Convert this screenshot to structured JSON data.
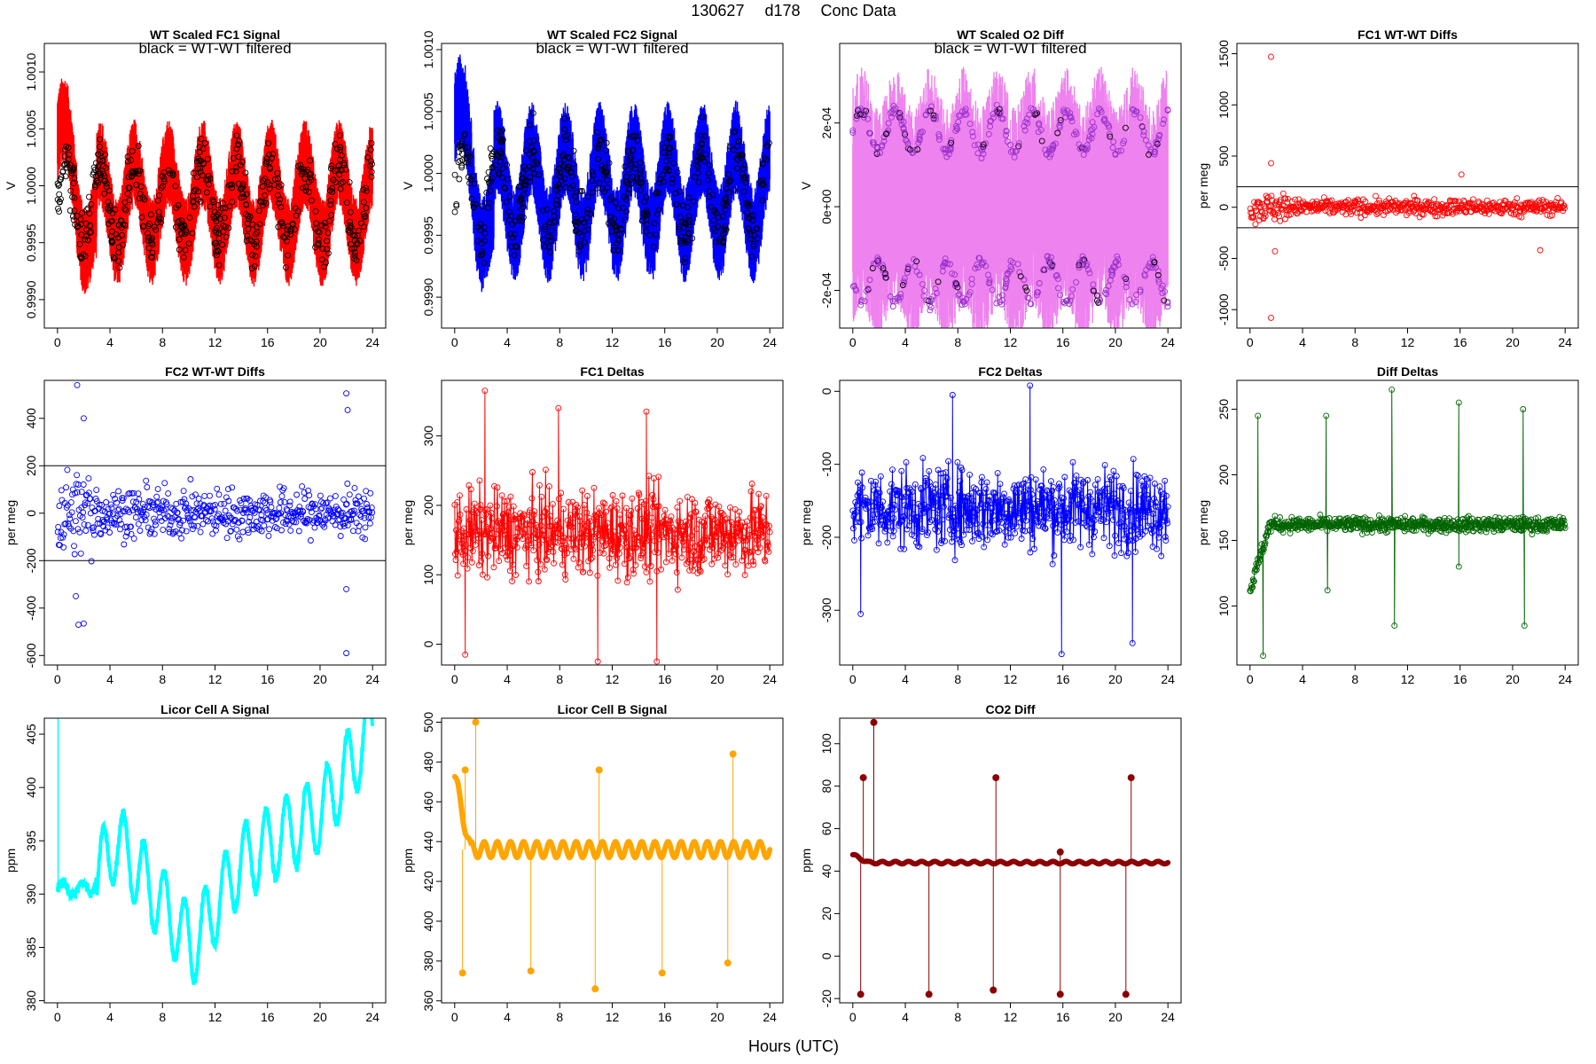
{
  "figure": {
    "title_parts": [
      "130627",
      "d178",
      "Conc Data"
    ],
    "xlabel": "Hours (UTC)"
  },
  "chart_data": [
    {
      "id": "fc1_signal",
      "type": "line",
      "title": "WT Scaled FC1 Signal",
      "annotation": "black = WT-WT filtered",
      "ylabel": "V",
      "color": "#ff0000",
      "overlay_color": "#000000",
      "xlim": [
        -1,
        25
      ],
      "ylim": [
        0.99875,
        1.00125
      ],
      "xticks": [
        0,
        4,
        8,
        12,
        16,
        20,
        24
      ],
      "yticks": [
        0.999,
        0.9995,
        1.0,
        1.0005,
        1.001
      ],
      "ytick_labels": [
        "0.9990",
        "0.9995",
        "1.0000",
        "1.0005",
        "1.0010"
      ],
      "shape": "diurnal",
      "x_range": [
        0,
        24
      ],
      "center": 0.99985,
      "band": 0.0003,
      "amplitude": 0.00035,
      "period_h": 2.6,
      "markers": "black-circles"
    },
    {
      "id": "fc2_signal",
      "type": "line",
      "title": "WT Scaled FC2 Signal",
      "annotation": "black = WT-WT filtered",
      "ylabel": "V",
      "color": "#0000ff",
      "overlay_color": "#000000",
      "xlim": [
        -1,
        25
      ],
      "ylim": [
        0.99875,
        1.00105
      ],
      "xticks": [
        0,
        4,
        8,
        12,
        16,
        20,
        24
      ],
      "yticks": [
        0.999,
        0.9995,
        1.0,
        1.0005,
        1.001
      ],
      "ytick_labels": [
        "0.9990",
        "0.9995",
        "1.0000",
        "1.0005",
        "1.0010"
      ],
      "shape": "diurnal",
      "x_range": [
        0,
        24
      ],
      "center": 0.99985,
      "band": 0.0003,
      "amplitude": 0.00035,
      "period_h": 2.6,
      "markers": "black-circles"
    },
    {
      "id": "o2_diff",
      "type": "line",
      "title": "WT Scaled O2 Diff",
      "annotation": "black = WT-WT filtered",
      "ylabel": "V",
      "color": "#ee82ee",
      "overlay_color": "#9932cc",
      "xlim": [
        -1,
        25
      ],
      "ylim": [
        -0.00029,
        0.00039
      ],
      "xticks": [
        0,
        4,
        8,
        12,
        16,
        20,
        24
      ],
      "yticks": [
        -0.0002,
        0.0,
        0.0002
      ],
      "ytick_labels": [
        "-2e-04",
        "0e+00",
        "2e-04"
      ],
      "shape": "o2band",
      "x_range": [
        0,
        24
      ],
      "center": 0.0,
      "band": 0.00022,
      "amplitude": 5e-05,
      "period_h": 2.6,
      "markers": "purple-circles"
    },
    {
      "id": "fc1_wtwt",
      "type": "scatter",
      "title": "FC1 WT-WT Diffs",
      "ylabel": "per meg",
      "color": "#ff0000",
      "xlim": [
        -1,
        25
      ],
      "ylim": [
        -1180,
        1600
      ],
      "xticks": [
        0,
        4,
        8,
        12,
        16,
        20,
        24
      ],
      "yticks": [
        -1000,
        -500,
        0,
        500,
        1000,
        1500
      ],
      "ytick_labels": [
        "-1000",
        "-500",
        "0",
        "500",
        "1000",
        "1500"
      ],
      "hlines": [
        200,
        -200
      ],
      "shape": "scatter",
      "x_range": [
        0,
        24
      ],
      "center": 0,
      "band": 70,
      "outliers": [
        [
          1.6,
          1470
        ],
        [
          1.6,
          -1080
        ],
        [
          1.6,
          430
        ],
        [
          22.1,
          -420
        ],
        [
          16.1,
          320
        ],
        [
          1.9,
          -430
        ]
      ]
    },
    {
      "id": "fc2_wtwt",
      "type": "scatter",
      "title": "FC2 WT-WT Diffs",
      "ylabel": "per meg",
      "color": "#0000ff",
      "xlim": [
        -1,
        25
      ],
      "ylim": [
        -640,
        560
      ],
      "xticks": [
        0,
        4,
        8,
        12,
        16,
        20,
        24
      ],
      "yticks": [
        -600,
        -400,
        -200,
        0,
        200,
        400
      ],
      "ytick_labels": [
        "-600",
        "-400",
        "-200",
        "0",
        "200",
        "400"
      ],
      "hlines": [
        200,
        -200
      ],
      "shape": "scatter",
      "x_range": [
        0,
        24
      ],
      "center": 0,
      "band": 90,
      "outliers": [
        [
          1.5,
          540
        ],
        [
          22.0,
          505
        ],
        [
          2.0,
          400
        ],
        [
          22.1,
          435
        ],
        [
          1.6,
          -470
        ],
        [
          2.0,
          -465
        ],
        [
          22.0,
          -590
        ],
        [
          22.0,
          -320
        ],
        [
          1.4,
          -350
        ]
      ]
    },
    {
      "id": "fc1_deltas",
      "type": "line",
      "title": "FC1 Deltas",
      "ylabel": "per meg",
      "color": "#ff0000",
      "xlim": [
        -1,
        25
      ],
      "ylim": [
        -30,
        380
      ],
      "xticks": [
        0,
        4,
        8,
        12,
        16,
        20,
        24
      ],
      "yticks": [
        0,
        100,
        200,
        300
      ],
      "ytick_labels": [
        "0",
        "100",
        "200",
        "300"
      ],
      "shape": "noisy",
      "x_range": [
        0,
        24
      ],
      "center": 160,
      "band": 55,
      "outliers": [
        [
          0.8,
          -15
        ],
        [
          2.3,
          365
        ],
        [
          10.9,
          -25
        ],
        [
          15.4,
          -25
        ],
        [
          14.6,
          335
        ],
        [
          7.9,
          340
        ]
      ]
    },
    {
      "id": "fc2_deltas",
      "type": "line",
      "title": "FC2 Deltas",
      "ylabel": "per meg",
      "color": "#0000ff",
      "xlim": [
        -1,
        25
      ],
      "ylim": [
        -375,
        15
      ],
      "xticks": [
        0,
        4,
        8,
        12,
        16,
        20,
        24
      ],
      "yticks": [
        -300,
        -200,
        -100,
        0
      ],
      "ytick_labels": [
        "-300",
        "-200",
        "-100",
        "0"
      ],
      "shape": "noisy",
      "x_range": [
        0,
        24
      ],
      "center": -160,
      "band": 50,
      "outliers": [
        [
          15.9,
          -360
        ],
        [
          13.5,
          8
        ],
        [
          7.6,
          -5
        ],
        [
          0.6,
          -305
        ],
        [
          21.3,
          -345
        ]
      ]
    },
    {
      "id": "diff_deltas",
      "type": "line",
      "title": "Diff Deltas",
      "ylabel": "per meg",
      "color": "#006400",
      "xlim": [
        -1,
        25
      ],
      "ylim": [
        55,
        272
      ],
      "xticks": [
        0,
        4,
        8,
        12,
        16,
        20,
        24
      ],
      "yticks": [
        100,
        150,
        200,
        250
      ],
      "ytick_labels": [
        "100",
        "150",
        "200",
        "250"
      ],
      "shape": "spiky",
      "x_range": [
        0,
        24
      ],
      "center": 162,
      "band": 4,
      "spikes_up": [
        [
          0.6,
          245
        ],
        [
          5.8,
          245
        ],
        [
          10.8,
          265
        ],
        [
          15.9,
          255
        ],
        [
          20.8,
          250
        ]
      ],
      "spikes_down": [
        [
          1.0,
          62
        ],
        [
          5.9,
          112
        ],
        [
          11.0,
          85
        ],
        [
          15.9,
          130
        ],
        [
          20.9,
          85
        ]
      ]
    },
    {
      "id": "licor_a",
      "type": "line",
      "title": "Licor Cell A Signal",
      "ylabel": "ppm",
      "color": "#00ffff",
      "xlim": [
        -1,
        25
      ],
      "ylim": [
        379.8,
        406.5
      ],
      "xticks": [
        0,
        4,
        8,
        12,
        16,
        20,
        24
      ],
      "yticks": [
        380,
        385,
        390,
        395,
        400,
        405
      ],
      "ytick_labels": [
        "380",
        "385",
        "390",
        "395",
        "400",
        "405"
      ],
      "shape": "licorA",
      "x_range": [
        0,
        24
      ],
      "trend": [
        [
          0,
          390.5
        ],
        [
          2.5,
          390.5
        ],
        [
          4.5,
          395
        ],
        [
          10.3,
          385
        ],
        [
          14,
          393
        ],
        [
          20,
          397.5
        ],
        [
          24,
          405.5
        ]
      ],
      "amplitude": 3.5,
      "period_h": 1.55,
      "outliers": [
        [
          0.05,
          406.5
        ]
      ]
    },
    {
      "id": "licor_b",
      "type": "line",
      "title": "Licor Cell B Signal",
      "ylabel": "ppm",
      "color": "#ffa500",
      "xlim": [
        -1,
        25
      ],
      "ylim": [
        359,
        502
      ],
      "xticks": [
        0,
        4,
        8,
        12,
        16,
        20,
        24
      ],
      "yticks": [
        360,
        380,
        400,
        420,
        440,
        460,
        480,
        500
      ],
      "ytick_labels": [
        "360",
        "380",
        "400",
        "420",
        "440",
        "460",
        "480",
        "500"
      ],
      "shape": "spikyline",
      "x_range": [
        0,
        24
      ],
      "center": 436,
      "amplitude": 4,
      "period_h": 1.0,
      "spikes_up": [
        [
          0.8,
          476
        ],
        [
          1.6,
          500
        ],
        [
          11.0,
          476
        ],
        [
          21.2,
          484
        ]
      ],
      "spikes_down": [
        [
          0.6,
          374
        ],
        [
          5.8,
          375
        ],
        [
          10.7,
          366
        ],
        [
          15.8,
          374
        ],
        [
          20.8,
          379
        ]
      ]
    },
    {
      "id": "co2_diff",
      "type": "line",
      "title": "CO2 Diff",
      "ylabel": "ppm",
      "color": "#8b0000",
      "xlim": [
        -1,
        25
      ],
      "ylim": [
        -22,
        112
      ],
      "xticks": [
        0,
        4,
        8,
        12,
        16,
        20,
        24
      ],
      "yticks": [
        -20,
        0,
        20,
        40,
        60,
        80,
        100
      ],
      "ytick_labels": [
        "-20",
        "0",
        "20",
        "40",
        "60",
        "80",
        "100"
      ],
      "shape": "spikyline",
      "x_range": [
        0,
        24
      ],
      "center": 44,
      "amplitude": 0.6,
      "period_h": 1.0,
      "spikes_up": [
        [
          0.8,
          84
        ],
        [
          1.6,
          110
        ],
        [
          10.9,
          84
        ],
        [
          15.8,
          49
        ],
        [
          21.2,
          84
        ]
      ],
      "spikes_down": [
        [
          0.6,
          -18
        ],
        [
          5.8,
          -18
        ],
        [
          10.7,
          -16
        ],
        [
          15.8,
          -18
        ],
        [
          20.8,
          -18
        ]
      ]
    }
  ]
}
